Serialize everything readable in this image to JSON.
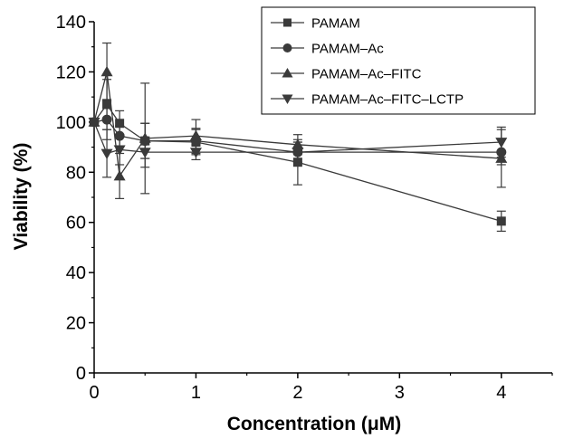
{
  "chart_data": {
    "type": "line",
    "title": "",
    "xlabel": "Concentration (μM)",
    "ylabel": "Viability (%)",
    "xlim": [
      0,
      4.5
    ],
    "ylim": [
      0,
      140
    ],
    "xticks": [
      0,
      1,
      2,
      3,
      4
    ],
    "yticks": [
      0,
      20,
      40,
      60,
      80,
      100,
      120,
      140
    ],
    "legend_position": "top-right",
    "line_color": "#3a3a3a",
    "series": [
      {
        "name": "PAMAM",
        "marker": "square",
        "x": [
          0,
          0.125,
          0.25,
          0.5,
          1,
          2,
          4
        ],
        "y": [
          100,
          107,
          99.5,
          92.5,
          92,
          84,
          60.5
        ],
        "err": [
          0,
          10,
          5,
          7,
          5,
          9,
          4
        ]
      },
      {
        "name": "PAMAM–Ac",
        "marker": "circle",
        "x": [
          0,
          0.125,
          0.25,
          0.5,
          1,
          2,
          4
        ],
        "y": [
          100,
          101,
          94.5,
          92.5,
          92.5,
          88,
          88
        ],
        "err": [
          0,
          8,
          4,
          7,
          5,
          4,
          5
        ]
      },
      {
        "name": "PAMAM–Ac–FITC",
        "marker": "triangle-up",
        "x": [
          0,
          0.125,
          0.25,
          0.5,
          1,
          2,
          4
        ],
        "y": [
          100,
          120,
          78.5,
          93.5,
          94.5,
          91,
          85.5
        ],
        "err": [
          0,
          11.5,
          9,
          22,
          6.5,
          4,
          11.5
        ]
      },
      {
        "name": "PAMAM–Ac–FITC–LCTP",
        "marker": "triangle-down",
        "x": [
          0,
          0.125,
          0.25,
          0.5,
          1,
          2,
          4
        ],
        "y": [
          100,
          87.5,
          89,
          88,
          88,
          88,
          92
        ],
        "err": [
          0,
          9.5,
          6,
          6,
          3,
          4,
          6
        ]
      }
    ]
  }
}
